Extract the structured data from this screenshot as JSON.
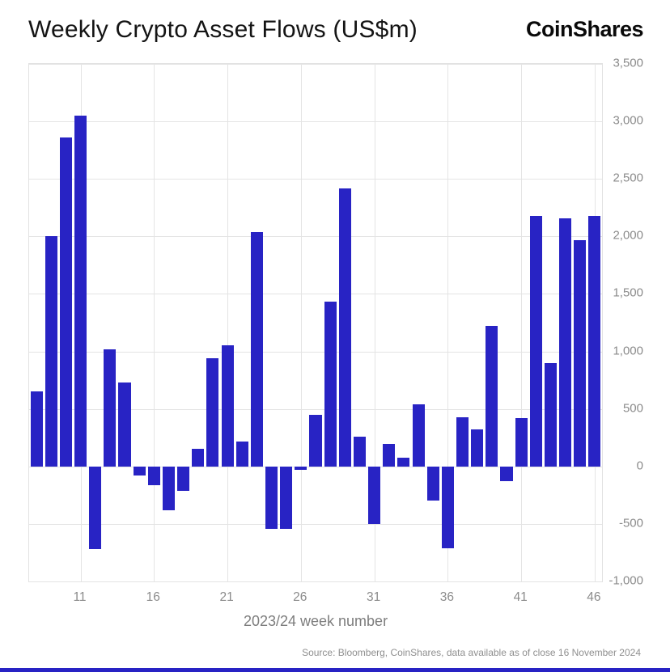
{
  "header": {
    "brand": "CoinShares"
  },
  "chart_data": {
    "type": "bar",
    "title": "Weekly Crypto Asset Flows (US$m)",
    "xlabel": "2023/24 week number",
    "ylabel": "",
    "ylim": [
      -1000,
      3500
    ],
    "grid": true,
    "legend": "none",
    "bar_color": "#2823c4",
    "grid_color": "#e4e4e4",
    "weeks": [
      8,
      9,
      10,
      11,
      12,
      13,
      14,
      15,
      16,
      17,
      18,
      19,
      20,
      21,
      22,
      23,
      24,
      25,
      26,
      27,
      28,
      29,
      30,
      31,
      32,
      33,
      34,
      35,
      36,
      37,
      38,
      39,
      40,
      41,
      42,
      43,
      44,
      45,
      46
    ],
    "values": [
      650,
      2000,
      2860,
      3050,
      -720,
      1020,
      730,
      -80,
      -160,
      -380,
      -210,
      150,
      940,
      1050,
      220,
      2040,
      -540,
      -545,
      -30,
      450,
      1430,
      2420,
      260,
      -500,
      195,
      75,
      540,
      -300,
      -715,
      430,
      320,
      1220,
      -130,
      420,
      2180,
      900,
      2160,
      1970,
      2180
    ],
    "xticks": [
      11,
      16,
      21,
      26,
      31,
      36,
      41,
      46
    ],
    "yticks": [
      {
        "value": 3500,
        "label": "3,500"
      },
      {
        "value": 3000,
        "label": "3,000"
      },
      {
        "value": 2500,
        "label": "2,500"
      },
      {
        "value": 2000,
        "label": "2,000"
      },
      {
        "value": 1500,
        "label": "1,500"
      },
      {
        "value": 1000,
        "label": "1,000"
      },
      {
        "value": 500,
        "label": "500"
      },
      {
        "value": 0,
        "label": "0"
      },
      {
        "value": -500,
        "label": "-500"
      },
      {
        "value": -1000,
        "label": "-1,000"
      }
    ]
  },
  "footer": {
    "source": "Source: Bloomberg, CoinShares, data available as of close 16 November 2024"
  }
}
